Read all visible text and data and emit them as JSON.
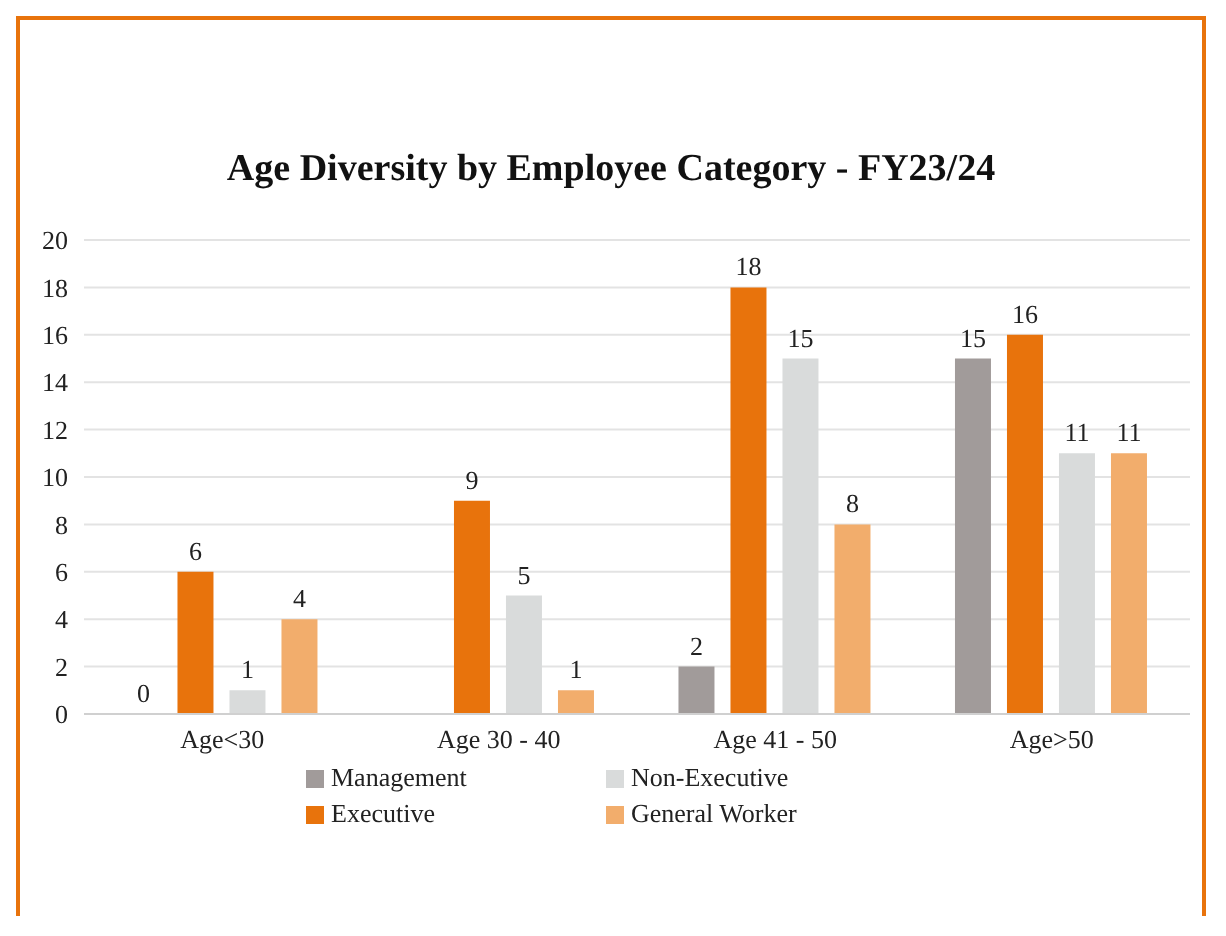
{
  "chart_data": {
    "type": "bar",
    "title": "Age Diversity by Employee Category - FY23/24",
    "categories": [
      "Age<30",
      "Age 30 - 40",
      "Age 41 - 50",
      "Age>50"
    ],
    "series": [
      {
        "name": "Management",
        "color": "#a19b9a",
        "values": [
          0,
          0,
          2,
          15
        ],
        "value_labels": [
          "0",
          null,
          "2",
          "15"
        ]
      },
      {
        "name": "Executive",
        "color": "#e8730c",
        "values": [
          6,
          9,
          18,
          16
        ],
        "value_labels": [
          "6",
          "9",
          "18",
          "16"
        ]
      },
      {
        "name": "Non-Executive",
        "color": "#d9dbdb",
        "values": [
          1,
          5,
          15,
          11
        ],
        "value_labels": [
          "1",
          "5",
          "15",
          "11"
        ]
      },
      {
        "name": "General Worker",
        "color": "#f2ad6c",
        "values": [
          4,
          1,
          8,
          11
        ],
        "value_labels": [
          "4",
          "1",
          "8",
          "11"
        ]
      }
    ],
    "ylim": [
      0,
      20
    ],
    "yticks": [
      0,
      2,
      4,
      6,
      8,
      10,
      12,
      14,
      16,
      18,
      20
    ],
    "grid": "y",
    "legend": "bottom"
  }
}
